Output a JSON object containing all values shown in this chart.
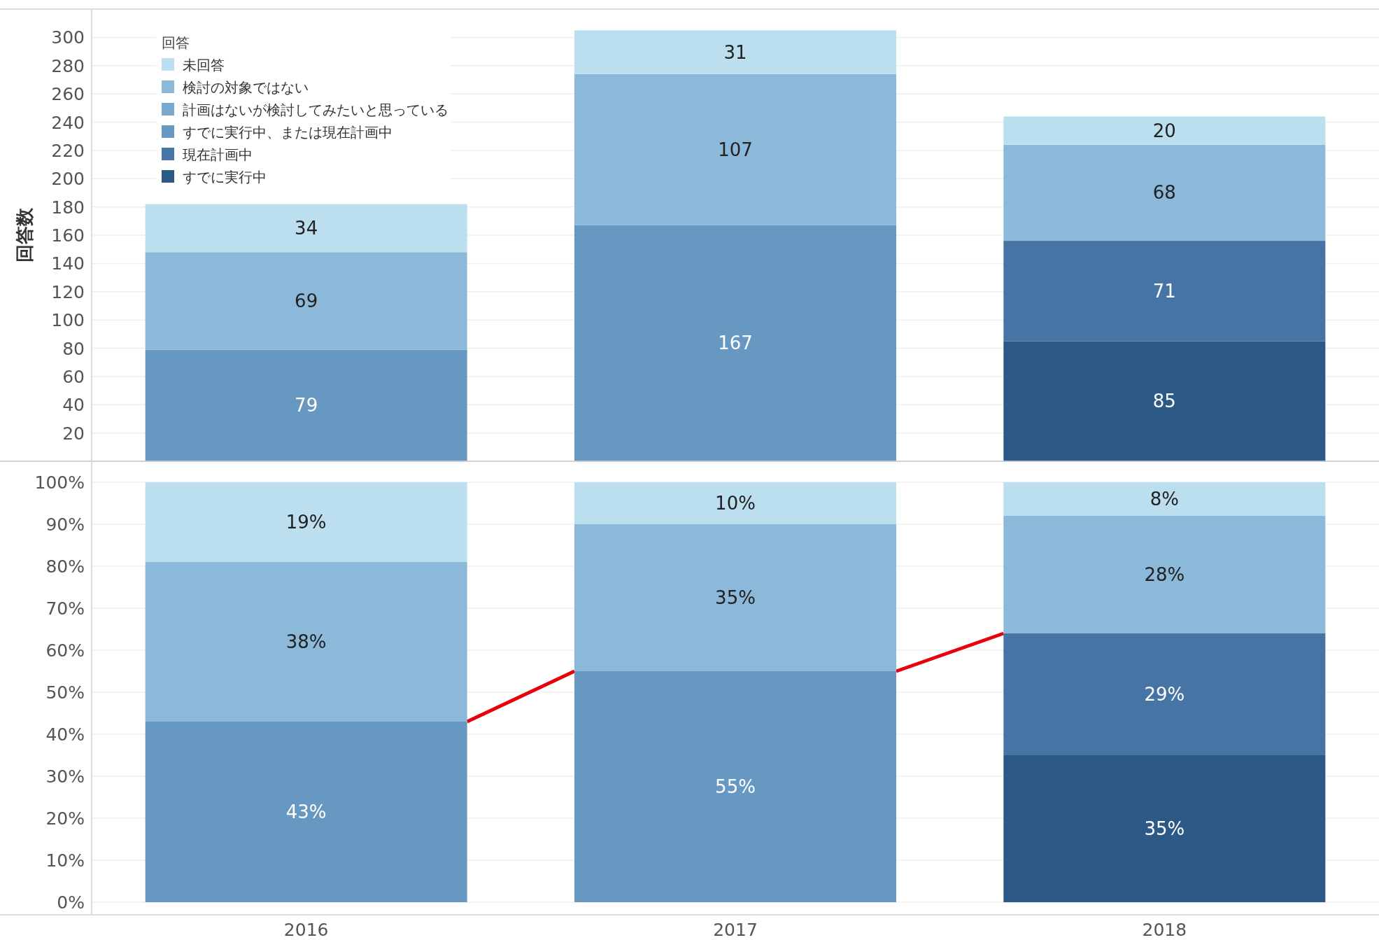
{
  "chart_data": [
    {
      "type": "bar",
      "stacked": true,
      "ylabel": "回答数",
      "legend_title": "回答",
      "legend": "top left",
      "grid": "y",
      "data_labels": true,
      "tick_labels": "y",
      "categories": [
        "2016",
        "2017",
        "2018"
      ],
      "ylim": [
        0,
        320
      ],
      "yticks": [
        20,
        40,
        60,
        80,
        100,
        120,
        140,
        160,
        180,
        200,
        220,
        240,
        260,
        280,
        300
      ],
      "series": [
        {
          "name": "すでに実行中",
          "color": "#2c5985",
          "values": [
            null,
            null,
            85
          ]
        },
        {
          "name": "現在計画中",
          "color": "#4675a5",
          "values": [
            null,
            null,
            71
          ]
        },
        {
          "name": "すでに実行中、または現在計画中",
          "color": "#6798c1",
          "values": [
            79,
            167,
            null
          ]
        },
        {
          "name": "計画はないが検討してみたいと思っている",
          "color": "#7aa9d0",
          "values": [
            null,
            null,
            null
          ]
        },
        {
          "name": "検討の対象ではない",
          "color": "#8cb9da",
          "values": [
            69,
            107,
            68
          ]
        },
        {
          "name": "未回答",
          "color": "#bcdff0",
          "values": [
            34,
            31,
            20
          ]
        }
      ]
    },
    {
      "type": "bar",
      "stacked": true,
      "grid": "y",
      "categories": [
        "2016",
        "2017",
        "2018"
      ],
      "ylim": [
        -3,
        105
      ],
      "yticks": [
        {
          "value": 0,
          "label": "0%"
        },
        {
          "value": 10,
          "label": "10%"
        },
        {
          "value": 20,
          "label": "20%"
        },
        {
          "value": 30,
          "label": "30%"
        },
        {
          "value": 40,
          "label": "40%"
        },
        {
          "value": 50,
          "label": "50%"
        },
        {
          "value": 60,
          "label": "60%"
        },
        {
          "value": 70,
          "label": "70%"
        },
        {
          "value": 80,
          "label": "80%"
        },
        {
          "value": 90,
          "label": "90%"
        },
        {
          "value": 100,
          "label": "100%"
        }
      ],
      "series": [
        {
          "color": "#2c5985",
          "values": [
            null,
            null,
            35
          ],
          "value_labels": [
            null,
            null,
            "35%"
          ]
        },
        {
          "color": "#4675a5",
          "values": [
            null,
            null,
            29
          ],
          "value_labels": [
            null,
            null,
            "29%"
          ]
        },
        {
          "color": "#6798c1",
          "values": [
            43,
            55,
            null
          ],
          "value_labels": [
            "43%",
            "55%",
            null
          ]
        },
        {
          "color": "#8cb9da",
          "values": [
            38,
            35,
            28
          ],
          "value_labels": [
            "38%",
            "35%",
            "28%"
          ]
        },
        {
          "color": "#bcdff0",
          "values": [
            19,
            10,
            8
          ],
          "value_labels": [
            "19%",
            "10%",
            "8%"
          ]
        }
      ]
    }
  ]
}
